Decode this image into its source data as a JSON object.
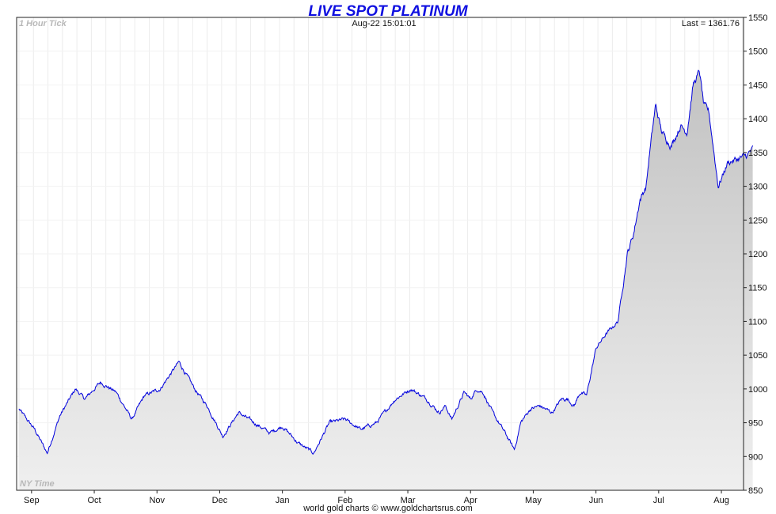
{
  "chart_data": {
    "type": "area",
    "title": "LIVE SPOT PLATINUM",
    "interval_label": "1 Hour Tick",
    "timestamp": "Aug-22  15:01:01",
    "last_label": "Last = 1361.76",
    "time_zone_label": "NY Time",
    "credit": "world gold charts © www.goldchartsrus.com",
    "ylim": [
      850,
      1550
    ],
    "y_ticks": [
      850,
      900,
      950,
      1000,
      1050,
      1100,
      1150,
      1200,
      1250,
      1300,
      1350,
      1400,
      1450,
      1500,
      1550
    ],
    "x_months": [
      "Sep",
      "Oct",
      "Nov",
      "Dec",
      "Jan",
      "Feb",
      "Mar",
      "Apr",
      "May",
      "Jun",
      "Jul",
      "Aug"
    ],
    "grid": true,
    "colors": {
      "line": "#0000dd",
      "fill_top": "#c2c2c2",
      "fill_bottom": "#efefef",
      "title": "#1010e0"
    },
    "series": [
      {
        "x": [
          0.0,
          0.25,
          0.45,
          0.65,
          0.9,
          1.05,
          1.3,
          1.55,
          1.8,
          2.0,
          2.25,
          2.55,
          2.8,
          3.0,
          3.25,
          3.5,
          3.75,
          4.0,
          4.2,
          4.45,
          4.7,
          4.95,
          5.2,
          5.45,
          5.7,
          6.0,
          6.25,
          6.5,
          6.7,
          6.8,
          6.9,
          7.0,
          7.1,
          7.2,
          7.3,
          7.4,
          7.55,
          7.75,
          7.9,
          8.0,
          8.15,
          8.3,
          8.5,
          8.65,
          8.75,
          8.85,
          8.95,
          9.05,
          9.2,
          9.35,
          9.55,
          9.7,
          9.8,
          9.9,
          10.0,
          10.05,
          10.15,
          10.25,
          10.4,
          10.55,
          10.65,
          10.75,
          10.85,
          10.92,
          11.0,
          11.15,
          11.3,
          11.45,
          11.6,
          11.7
        ],
        "y": [
          970,
          940,
          905,
          960,
          1000,
          985,
          1010,
          995,
          955,
          990,
          1000,
          1040,
          1000,
          975,
          930,
          965,
          950,
          935,
          945,
          920,
          905,
          950,
          955,
          940,
          950,
          985,
          1000,
          985,
          965,
          975,
          955,
          975,
          995,
          985,
          1000,
          995,
          965,
          935,
          910,
          950,
          970,
          975,
          965,
          985,
          985,
          975,
          995,
          990,
          1060,
          1080,
          1100,
          1200,
          1230,
          1280,
          1300,
          1345,
          1420,
          1380,
          1360,
          1390,
          1380,
          1450,
          1470,
          1420,
          1410,
          1300,
          1335,
          1340,
          1345,
          1355
        ]
      }
    ]
  }
}
